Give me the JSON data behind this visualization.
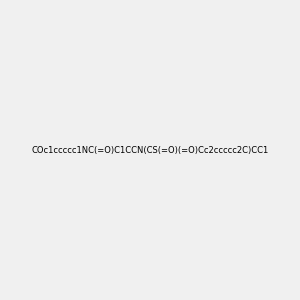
{
  "smiles": "COc1ccccc1NC(=O)C1CCN(CS(=O)(=O)Cc2ccccc2C)CC1",
  "title": "",
  "bg_color": "#f0f0f0",
  "atom_color_map": {
    "O": "#ff0000",
    "N": "#0000ff",
    "S": "#ccaa00",
    "C": "#2f6f6f",
    "H": "#404040"
  },
  "bond_color": "#2f6f6f",
  "figsize": [
    3.0,
    3.0
  ],
  "dpi": 100
}
